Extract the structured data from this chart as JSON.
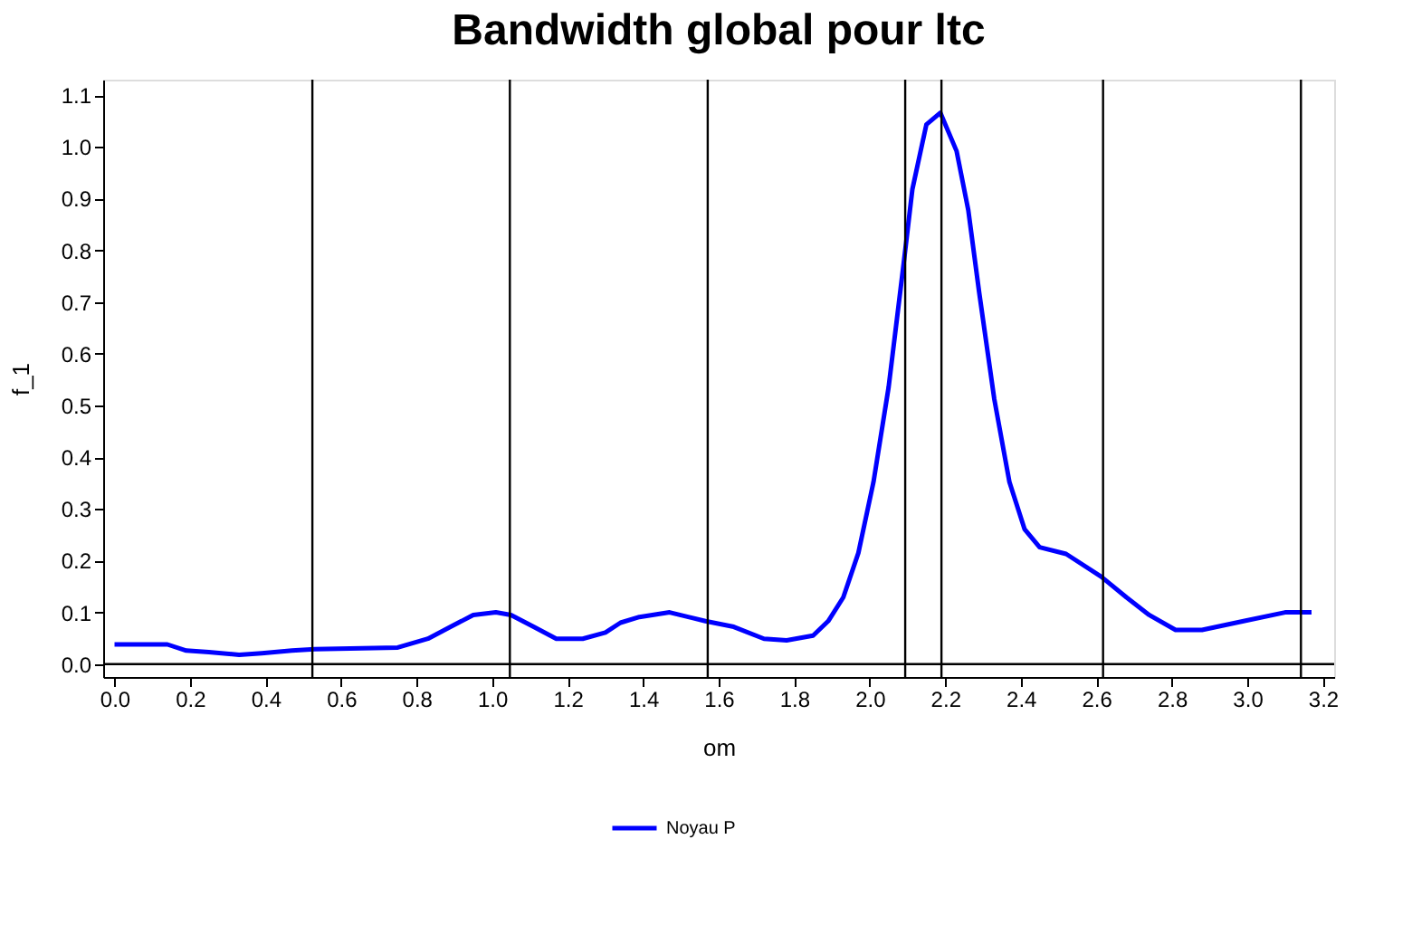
{
  "chart_data": {
    "type": "line",
    "title": "Bandwidth global pour ltc",
    "xlabel": "om",
    "ylabel": "f_1",
    "x": [
      0,
      0.14,
      0.19,
      0.25,
      0.33,
      0.39,
      0.47,
      0.53,
      0.75,
      0.83,
      0.89,
      0.95,
      1.01,
      1.05,
      1.11,
      1.17,
      1.24,
      1.3,
      1.34,
      1.39,
      1.47,
      1.565,
      1.64,
      1.72,
      1.78,
      1.85,
      1.89,
      1.93,
      1.97,
      2.01,
      2.05,
      2.09,
      2.113,
      2.15,
      2.187,
      2.23,
      2.261,
      2.29,
      2.33,
      2.37,
      2.41,
      2.45,
      2.52,
      2.613,
      2.68,
      2.74,
      2.81,
      2.88,
      2.99,
      3.1,
      3.17
    ],
    "series": [
      {
        "name": "Noyau P",
        "color": "#0000ff",
        "values": [
          0.038,
          0.038,
          0.026,
          0.023,
          0.018,
          0.021,
          0.026,
          0.029,
          0.032,
          0.049,
          0.072,
          0.095,
          0.1,
          0.095,
          0.072,
          0.049,
          0.049,
          0.061,
          0.08,
          0.091,
          0.1,
          0.083,
          0.072,
          0.049,
          0.046,
          0.055,
          0.083,
          0.129,
          0.215,
          0.352,
          0.535,
          0.775,
          0.918,
          1.043,
          1.066,
          0.992,
          0.878,
          0.718,
          0.512,
          0.352,
          0.261,
          0.226,
          0.213,
          0.169,
          0.129,
          0.095,
          0.066,
          0.066,
          0.083,
          0.1,
          0.1
        ]
      }
    ],
    "xlim": [
      -0.03,
      3.23
    ],
    "ylim": [
      -0.025,
      1.13
    ],
    "xticks": [
      {
        "value": 0,
        "label": "0.0"
      },
      0.2,
      0.4,
      0.6,
      0.8,
      {
        "value": 1,
        "label": "1.0"
      },
      1.2,
      1.4,
      1.6,
      1.8,
      {
        "value": 2,
        "label": "2.0"
      },
      2.2,
      2.4,
      2.6,
      2.8,
      {
        "value": 3,
        "label": "3.0"
      },
      3.2
    ],
    "yticks": [
      {
        "value": 0,
        "label": "0.0"
      },
      0.1,
      0.2,
      0.3,
      0.4,
      0.5,
      0.6,
      0.7,
      0.8,
      0.9,
      {
        "value": 1,
        "label": "1.0"
      },
      1.1
    ],
    "ref_lines": [
      {
        "axis": "y",
        "value": 0,
        "color": "#000000"
      },
      {
        "axis": "x",
        "value": 0.524,
        "color": "#000000"
      },
      {
        "axis": "x",
        "value": 1.047,
        "color": "#000000"
      },
      {
        "axis": "x",
        "value": 1.571,
        "color": "#000000"
      },
      {
        "axis": "x",
        "value": 2.094,
        "color": "#000000"
      },
      {
        "axis": "x",
        "value": 2.19,
        "color": "#000000"
      },
      {
        "axis": "x",
        "value": 2.618,
        "color": "#000000"
      },
      {
        "axis": "x",
        "value": 3.142,
        "color": "#000000"
      }
    ],
    "grid": false,
    "legend": "bottom",
    "marker": "none",
    "line_style": "solid"
  }
}
